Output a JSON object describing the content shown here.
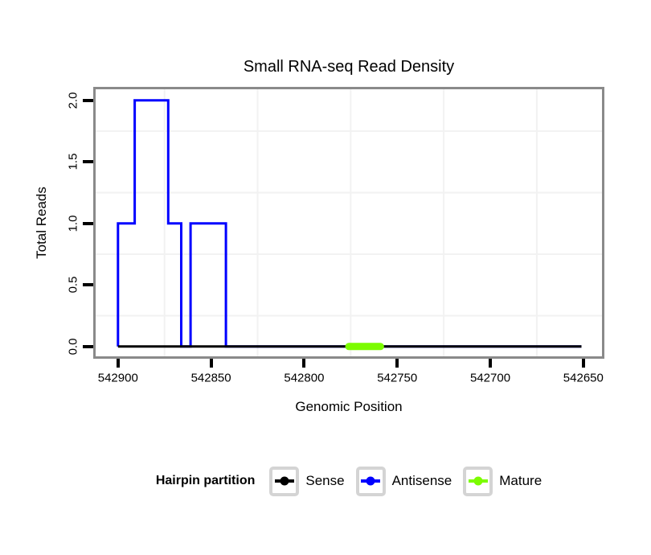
{
  "title": "Small RNA-seq Read Density",
  "x_axis": {
    "label": "Genomic Position",
    "tick_labels": [
      "542900",
      "542850",
      "542800",
      "542750",
      "542700",
      "542650"
    ],
    "tick_values": [
      542900,
      542850,
      542800,
      542750,
      542700,
      542650
    ]
  },
  "y_axis": {
    "label": "Total Reads",
    "tick_labels": [
      "0.0",
      "0.5",
      "1.0",
      "1.5",
      "2.0"
    ],
    "tick_values": [
      0,
      0.5,
      1,
      1.5,
      2
    ]
  },
  "legend": {
    "title": "Hairpin partition",
    "items": [
      {
        "label": "Sense",
        "color": "#000000"
      },
      {
        "label": "Antisense",
        "color": "#0000ff"
      },
      {
        "label": "Mature",
        "color": "#7cfc00"
      }
    ]
  },
  "chart_data": {
    "type": "line",
    "title": "Small RNA-seq Read Density",
    "xlabel": "Genomic Position",
    "ylabel": "Total Reads",
    "x_domain": [
      542912,
      542640
    ],
    "x_reversed": true,
    "y_domain": [
      -0.08,
      2.09
    ],
    "grid": {
      "x_minor": [
        542875,
        542825,
        542775,
        542725,
        542675
      ],
      "y_minor": [
        0.25,
        0.75,
        1.25,
        1.75
      ]
    },
    "series": [
      {
        "name": "Antisense",
        "color": "#0000ff",
        "stroke_width": 3,
        "linecap": "butt",
        "points": [
          [
            542900,
            0
          ],
          [
            542900,
            1
          ],
          [
            542891,
            1
          ],
          [
            542891,
            2
          ],
          [
            542873,
            2
          ],
          [
            542873,
            1
          ],
          [
            542866,
            1
          ],
          [
            542866,
            0
          ],
          [
            542861,
            0
          ],
          [
            542861,
            1
          ],
          [
            542842,
            1
          ],
          [
            542842,
            0
          ],
          [
            542651,
            0
          ]
        ]
      },
      {
        "name": "Sense",
        "color": "#000000",
        "stroke_width": 3,
        "linecap": "butt",
        "points": [
          [
            542900,
            0
          ],
          [
            542651,
            0
          ]
        ]
      },
      {
        "name": "Mature",
        "color": "#7cfc00",
        "stroke_width": 9,
        "linecap": "round",
        "points": [
          [
            542776,
            0
          ],
          [
            542759,
            0
          ]
        ]
      }
    ]
  },
  "colors": {
    "panel_border": "#8a8a8a",
    "grid_minor": "#f2f2f2",
    "tick": "#000000",
    "legend_key_border": "#d4d4d4",
    "background": "#ffffff"
  }
}
